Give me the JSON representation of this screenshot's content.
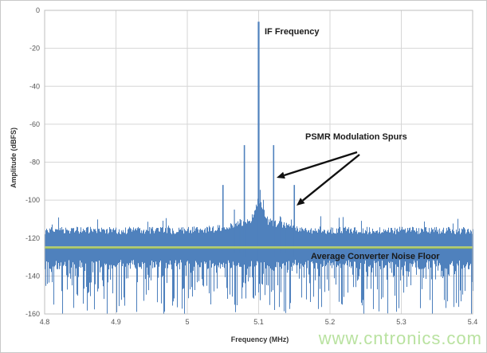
{
  "page": {
    "background": "#ffffff",
    "border_color": "#c8c8c8"
  },
  "watermark": {
    "text": "www.cntronics.com",
    "color": "#b9e2a0"
  },
  "chart_data": {
    "type": "line",
    "subtype": "fft-spectrum",
    "title": "",
    "xlabel": "Frequency (MHz)",
    "ylabel": "Amplitude (dBFS)",
    "xlim": [
      4.8,
      5.4
    ],
    "ylim": [
      -160,
      0
    ],
    "grid": true,
    "legend": false,
    "x_ticks": [
      {
        "value": 4.8,
        "label": "4.8"
      },
      {
        "value": 4.9,
        "label": "4.9"
      },
      {
        "value": 5.0,
        "label": "5"
      },
      {
        "value": 5.1,
        "label": "5.1"
      },
      {
        "value": 5.2,
        "label": "5.2"
      },
      {
        "value": 5.3,
        "label": "5.3"
      },
      {
        "value": 5.4,
        "label": "5.4"
      }
    ],
    "y_ticks": [
      {
        "value": 0,
        "label": "0"
      },
      {
        "value": -20,
        "label": "-20"
      },
      {
        "value": -40,
        "label": "-40"
      },
      {
        "value": -60,
        "label": "-60"
      },
      {
        "value": -80,
        "label": "-80"
      },
      {
        "value": -100,
        "label": "-100"
      },
      {
        "value": -120,
        "label": "-120"
      },
      {
        "value": -140,
        "label": "-140"
      },
      {
        "value": -160,
        "label": "-160"
      }
    ],
    "colors": {
      "series": "#4f81bd",
      "noise_floor_line": "#9bbb59",
      "noise_floor_line_highlight": "#cfe08a",
      "grid": "#d6d6d6",
      "plot_border": "#bfbfbf",
      "tick_text": "#555555",
      "annotation_text": "#1a1a1a",
      "arrow": "#111111"
    },
    "if_peak": {
      "frequency_mhz": 5.1,
      "amplitude_dbfs": -6
    },
    "psmr_spurs": [
      {
        "frequency_mhz": 5.05,
        "amplitude_dbfs": -92
      },
      {
        "frequency_mhz": 5.08,
        "amplitude_dbfs": -71
      },
      {
        "frequency_mhz": 5.121,
        "amplitude_dbfs": -71
      },
      {
        "frequency_mhz": 5.15,
        "amplitude_dbfs": -92
      }
    ],
    "minor_spurs": [
      {
        "frequency_mhz": 5.066,
        "amplitude_dbfs": -105
      },
      {
        "frequency_mhz": 5.074,
        "amplitude_dbfs": -110
      },
      {
        "frequency_mhz": 5.131,
        "amplitude_dbfs": -109
      },
      {
        "frequency_mhz": 5.139,
        "amplitude_dbfs": -112
      }
    ],
    "noise_floor": {
      "average_dbfs": -125
    },
    "noise_model": {
      "seed": 7,
      "top_mean_dbfs": -116,
      "top_jitter_db": 4,
      "up_spike_probability": 0.035,
      "solid_bottom_dbfs": -131.5,
      "bottom_jitter_db": 5,
      "down_spike_probability": 0.52,
      "down_spike_max_db": 26,
      "center_broad_gain_db": 5,
      "center_broad_sigma_mhz": 0.045,
      "skirt_gain_db": 11.5,
      "skirt_halfwidth_mhz": 0.0125
    },
    "annotations": {
      "if_label": "IF Frequency",
      "spurs_label": "PSMR Modulation Spurs",
      "noise_floor_label": "Average Converter Noise Floor"
    }
  }
}
